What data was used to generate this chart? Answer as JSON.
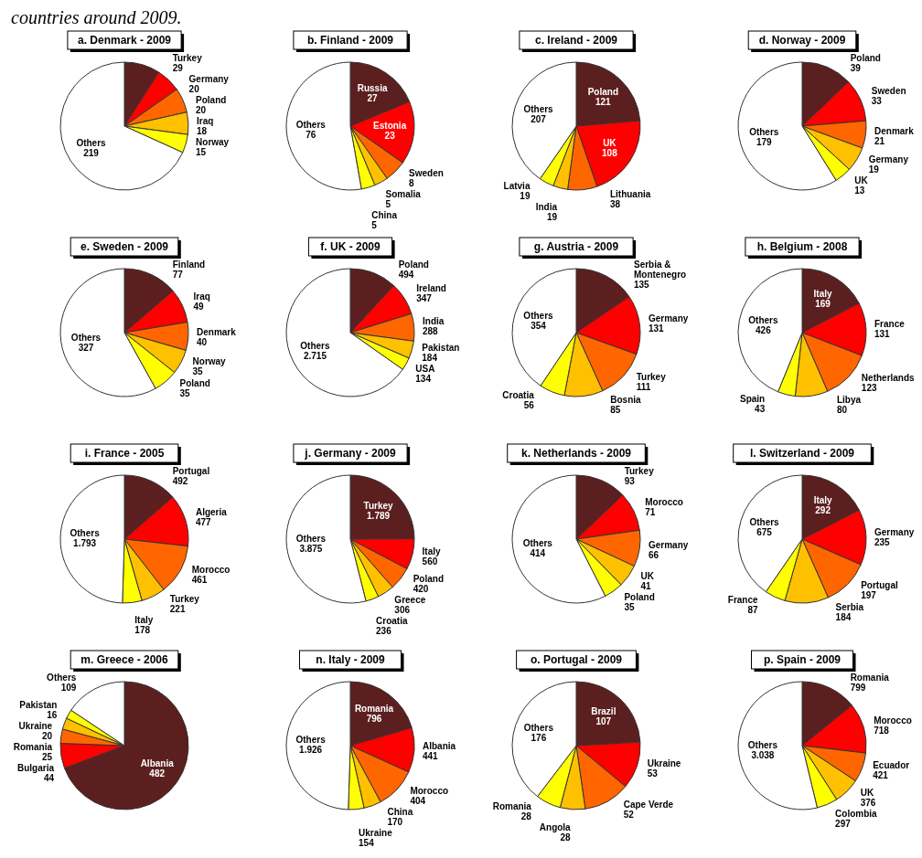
{
  "chart_data": [
    {
      "type": "pie",
      "title": "a. Denmark - 2009",
      "annotations": [
        "countries around 2009."
      ],
      "categories": [
        "Turkey",
        "Germany",
        "Poland",
        "Iraq",
        "Norway",
        "Others"
      ],
      "values": [
        29,
        20,
        20,
        18,
        15,
        219
      ],
      "value_labels": [
        "29",
        "20",
        "20",
        "18",
        "15",
        "219"
      ],
      "colors": [
        "#5c1f1f",
        "#ff0000",
        "#ff6600",
        "#ffc000",
        "#ffff00",
        "#ffffff"
      ]
    },
    {
      "type": "pie",
      "title": "b. Finland - 2009",
      "categories": [
        "Russia",
        "Estonia",
        "Sweden",
        "Somalia",
        "China",
        "Others"
      ],
      "values": [
        27,
        23,
        8,
        5,
        5,
        76
      ],
      "value_labels": [
        "27",
        "23",
        "8",
        "5",
        "5",
        "76"
      ],
      "colors": [
        "#5c1f1f",
        "#ff0000",
        "#ff6600",
        "#ffc000",
        "#ffff00",
        "#ffffff"
      ]
    },
    {
      "type": "pie",
      "title": "c. Ireland - 2009",
      "categories": [
        "Poland",
        "UK",
        "Lithuania",
        "India",
        "Latvia",
        "Others"
      ],
      "values": [
        121,
        108,
        38,
        19,
        19,
        207
      ],
      "value_labels": [
        "121",
        "108",
        "38",
        "19",
        "19",
        "207"
      ],
      "colors": [
        "#5c1f1f",
        "#ff0000",
        "#ff6600",
        "#ffc000",
        "#ffff00",
        "#ffffff"
      ]
    },
    {
      "type": "pie",
      "title": "d. Norway - 2009",
      "categories": [
        "Poland",
        "Sweden",
        "Denmark",
        "Germany",
        "UK",
        "Others"
      ],
      "values": [
        39,
        33,
        21,
        19,
        13,
        179
      ],
      "value_labels": [
        "39",
        "33",
        "21",
        "19",
        "13",
        "179"
      ],
      "colors": [
        "#5c1f1f",
        "#ff0000",
        "#ff6600",
        "#ffc000",
        "#ffff00",
        "#ffffff"
      ]
    },
    {
      "type": "pie",
      "title": "e. Sweden - 2009",
      "categories": [
        "Finland",
        "Iraq",
        "Denmark",
        "Norway",
        "Poland",
        "Others"
      ],
      "values": [
        77,
        49,
        40,
        35,
        35,
        327
      ],
      "value_labels": [
        "77",
        "49",
        "40",
        "35",
        "35",
        "327"
      ],
      "colors": [
        "#5c1f1f",
        "#ff0000",
        "#ff6600",
        "#ffc000",
        "#ffff00",
        "#ffffff"
      ]
    },
    {
      "type": "pie",
      "title": "f. UK - 2009",
      "categories": [
        "Poland",
        "Ireland",
        "India",
        "Pakistan",
        "USA",
        "Others"
      ],
      "values": [
        494,
        347,
        288,
        184,
        134,
        2715
      ],
      "value_labels": [
        "494",
        "347",
        "288",
        "184",
        "134",
        "2.715"
      ],
      "colors": [
        "#5c1f1f",
        "#ff0000",
        "#ff6600",
        "#ffc000",
        "#ffff00",
        "#ffffff"
      ]
    },
    {
      "type": "pie",
      "title": "g. Austria - 2009",
      "categories": [
        "Serbia & Montenegro",
        "Germany",
        "Turkey",
        "Bosnia",
        "Croatia",
        "Others"
      ],
      "values": [
        135,
        131,
        111,
        85,
        56,
        354
      ],
      "value_labels": [
        "135",
        "131",
        "111",
        "85",
        "56",
        "354"
      ],
      "colors": [
        "#5c1f1f",
        "#ff0000",
        "#ff6600",
        "#ffc000",
        "#ffff00",
        "#ffffff"
      ]
    },
    {
      "type": "pie",
      "title": "h. Belgium - 2008",
      "categories": [
        "Italy",
        "France",
        "Netherlands",
        "Libya",
        "Spain",
        "Others"
      ],
      "values": [
        169,
        131,
        123,
        80,
        43,
        426
      ],
      "value_labels": [
        "169",
        "131",
        "123",
        "80",
        "43",
        "426"
      ],
      "colors": [
        "#5c1f1f",
        "#ff0000",
        "#ff6600",
        "#ffc000",
        "#ffff00",
        "#ffffff"
      ]
    },
    {
      "type": "pie",
      "title": "i. France - 2005",
      "categories": [
        "Portugal",
        "Algeria",
        "Morocco",
        "Turkey",
        "Italy",
        "Others"
      ],
      "values": [
        492,
        477,
        461,
        221,
        178,
        1793
      ],
      "value_labels": [
        "492",
        "477",
        "461",
        "221",
        "178",
        "1.793"
      ],
      "colors": [
        "#5c1f1f",
        "#ff0000",
        "#ff6600",
        "#ffc000",
        "#ffff00",
        "#ffffff"
      ]
    },
    {
      "type": "pie",
      "title": "j. Germany - 2009",
      "categories": [
        "Turkey",
        "Italy",
        "Poland",
        "Greece",
        "Croatia",
        "Others"
      ],
      "values": [
        1789,
        560,
        420,
        306,
        236,
        3875
      ],
      "value_labels": [
        "1.789",
        "560",
        "420",
        "306",
        "236",
        "3.875"
      ],
      "colors": [
        "#5c1f1f",
        "#ff0000",
        "#ff6600",
        "#ffc000",
        "#ffff00",
        "#ffffff"
      ]
    },
    {
      "type": "pie",
      "title": "k. Netherlands - 2009",
      "categories": [
        "Turkey",
        "Morocco",
        "Germany",
        "UK",
        "Poland",
        "Others"
      ],
      "values": [
        93,
        71,
        66,
        41,
        35,
        414
      ],
      "value_labels": [
        "93",
        "71",
        "66",
        "41",
        "35",
        "414"
      ],
      "colors": [
        "#5c1f1f",
        "#ff0000",
        "#ff6600",
        "#ffc000",
        "#ffff00",
        "#ffffff"
      ]
    },
    {
      "type": "pie",
      "title": "l. Switzerland - 2009",
      "categories": [
        "Italy",
        "Germany",
        "Portugal",
        "Serbia",
        "France",
        "Others"
      ],
      "values": [
        292,
        235,
        197,
        184,
        87,
        675
      ],
      "value_labels": [
        "292",
        "235",
        "197",
        "184",
        "87",
        "675"
      ],
      "colors": [
        "#5c1f1f",
        "#ff0000",
        "#ff6600",
        "#ffc000",
        "#ffff00",
        "#ffffff"
      ]
    },
    {
      "type": "pie",
      "title": "m. Greece - 2006",
      "categories": [
        "Albania",
        "Bulgaria",
        "Romania",
        "Ukraine",
        "Pakistan",
        "Others"
      ],
      "values": [
        482,
        44,
        25,
        20,
        16,
        109
      ],
      "value_labels": [
        "482",
        "44",
        "25",
        "20",
        "16",
        "109"
      ],
      "colors": [
        "#5c1f1f",
        "#ff0000",
        "#ff6600",
        "#ffc000",
        "#ffff00",
        "#ffffff"
      ]
    },
    {
      "type": "pie",
      "title": "n. Italy - 2009",
      "categories": [
        "Romania",
        "Albania",
        "Morocco",
        "China",
        "Ukraine",
        "Others"
      ],
      "values": [
        796,
        441,
        404,
        170,
        154,
        1926
      ],
      "value_labels": [
        "796",
        "441",
        "404",
        "170",
        "154",
        "1.926"
      ],
      "colors": [
        "#5c1f1f",
        "#ff0000",
        "#ff6600",
        "#ffc000",
        "#ffff00",
        "#ffffff"
      ]
    },
    {
      "type": "pie",
      "title": "o. Portugal - 2009",
      "categories": [
        "Brazil",
        "Ukraine",
        "Cape Verde",
        "Angola",
        "Romania",
        "Others"
      ],
      "values": [
        107,
        53,
        52,
        28,
        28,
        176
      ],
      "value_labels": [
        "107",
        "53",
        "52",
        "28",
        "28",
        "176"
      ],
      "colors": [
        "#5c1f1f",
        "#ff0000",
        "#ff6600",
        "#ffc000",
        "#ffff00",
        "#ffffff"
      ]
    },
    {
      "type": "pie",
      "title": "p. Spain - 2009",
      "categories": [
        "Romania",
        "Morocco",
        "Ecuador",
        "UK",
        "Colombia",
        "Others"
      ],
      "values": [
        799,
        718,
        421,
        376,
        297,
        3038
      ],
      "value_labels": [
        "799",
        "718",
        "421",
        "376",
        "297",
        "3.038"
      ],
      "colors": [
        "#5c1f1f",
        "#ff0000",
        "#ff6600",
        "#ffc000",
        "#ffff00",
        "#ffffff"
      ]
    }
  ]
}
